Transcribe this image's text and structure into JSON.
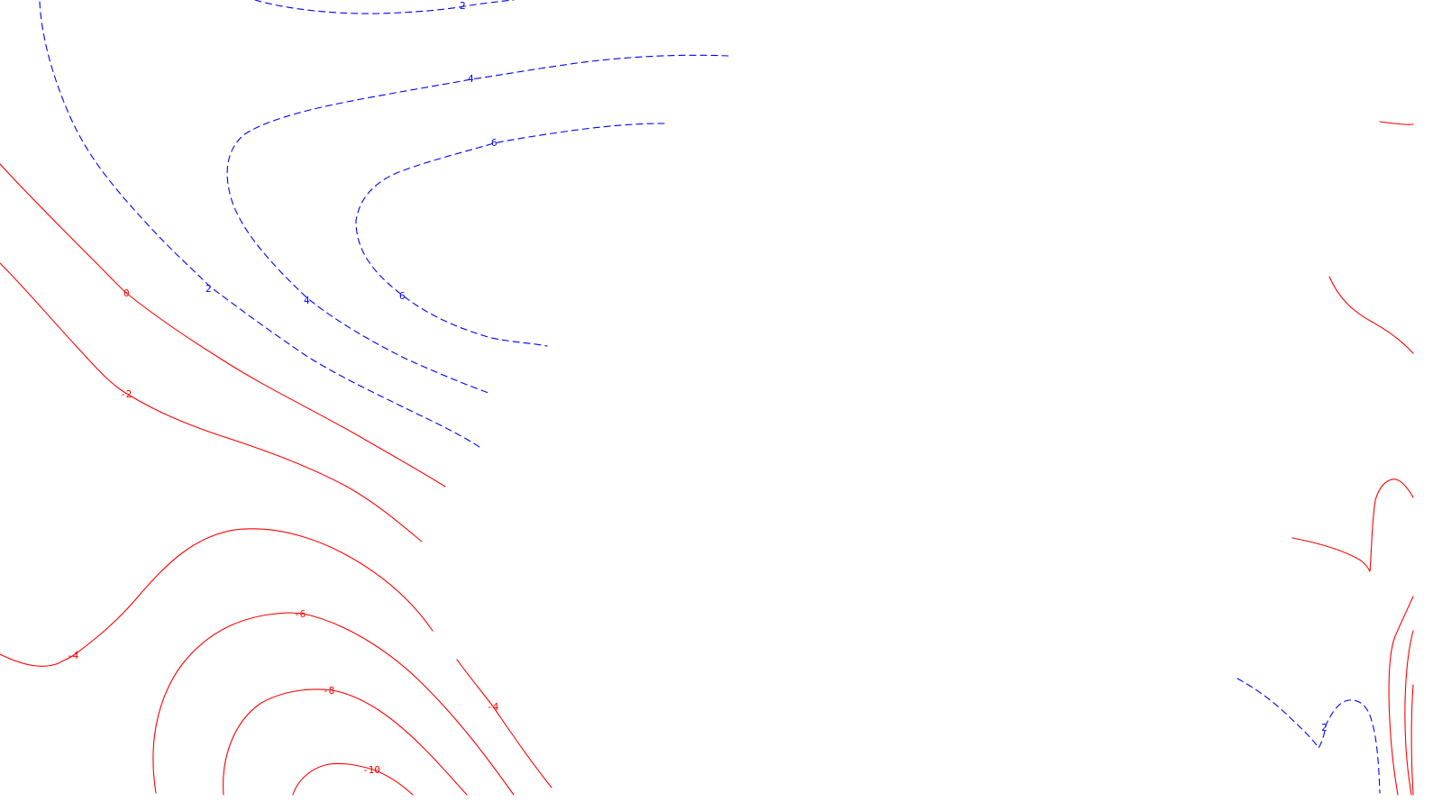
{
  "map": {
    "colors": {
      "positive": "#0000ff",
      "negative": "#ff0000",
      "background": "#ffffff"
    },
    "contours": [
      {
        "id": "pos-2-top",
        "value": 2,
        "sign": "positive",
        "labels": [
          "2"
        ]
      },
      {
        "id": "pos-2-left",
        "value": 2,
        "sign": "positive",
        "labels": [
          "2"
        ]
      },
      {
        "id": "pos-4",
        "value": 4,
        "sign": "positive",
        "labels": [
          "4",
          "4"
        ]
      },
      {
        "id": "pos-6",
        "value": 6,
        "sign": "positive",
        "labels": [
          "6",
          "6"
        ]
      },
      {
        "id": "zero",
        "value": 0,
        "sign": "negative",
        "labels": [
          "0"
        ]
      },
      {
        "id": "neg-2",
        "value": -2,
        "sign": "negative",
        "labels": [
          "-2"
        ]
      },
      {
        "id": "neg-4-left",
        "value": -4,
        "sign": "negative",
        "labels": [
          "-4"
        ]
      },
      {
        "id": "neg-4-right",
        "value": -4,
        "sign": "negative",
        "labels": [
          "-4"
        ]
      },
      {
        "id": "neg-6",
        "value": -6,
        "sign": "negative",
        "labels": [
          "-6"
        ]
      },
      {
        "id": "neg-8",
        "value": -8,
        "sign": "negative",
        "labels": [
          "-8"
        ]
      },
      {
        "id": "neg-10",
        "value": -10,
        "sign": "negative",
        "labels": [
          "-10"
        ]
      },
      {
        "id": "pos-2-right",
        "value": 2,
        "sign": "positive",
        "labels": [
          "2"
        ]
      },
      {
        "id": "neg-right-a",
        "value": null,
        "sign": "negative",
        "labels": []
      },
      {
        "id": "neg-right-b",
        "value": null,
        "sign": "negative",
        "labels": []
      },
      {
        "id": "neg-right-c",
        "value": null,
        "sign": "negative",
        "labels": []
      },
      {
        "id": "neg-right-d",
        "value": null,
        "sign": "negative",
        "labels": []
      }
    ]
  }
}
